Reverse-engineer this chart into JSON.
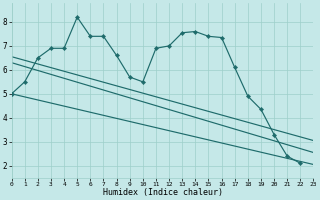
{
  "xlabel": "Humidex (Indice chaleur)",
  "bg_color": "#c5e8e8",
  "grid_color": "#9ecfca",
  "line_color": "#1e6b6b",
  "ylim": [
    1.5,
    8.8
  ],
  "xlim": [
    0,
    23
  ],
  "yticks": [
    2,
    3,
    4,
    5,
    6,
    7,
    8
  ],
  "xticks": [
    0,
    1,
    2,
    3,
    4,
    5,
    6,
    7,
    8,
    9,
    10,
    11,
    12,
    13,
    14,
    15,
    16,
    17,
    18,
    19,
    20,
    21,
    22,
    23
  ],
  "series1_x": [
    0,
    1,
    2,
    3,
    4,
    5,
    6,
    7,
    8,
    9,
    10,
    11,
    12,
    13,
    14,
    15,
    16,
    17,
    18,
    19,
    20,
    21,
    22
  ],
  "series1_y": [
    5.0,
    5.5,
    6.5,
    6.9,
    6.9,
    8.2,
    7.4,
    7.4,
    6.6,
    5.7,
    5.5,
    6.9,
    7.0,
    7.55,
    7.6,
    7.4,
    7.35,
    6.1,
    4.9,
    4.35,
    3.3,
    2.4,
    2.1
  ],
  "line1_x": [
    0,
    23
  ],
  "line1_y": [
    5.0,
    2.05
  ],
  "line2_x": [
    0,
    23
  ],
  "line2_y": [
    6.3,
    2.55
  ],
  "line3_x": [
    0,
    23
  ],
  "line3_y": [
    6.55,
    3.05
  ],
  "marker": "D",
  "marker_size": 2.2,
  "linewidth": 0.85
}
